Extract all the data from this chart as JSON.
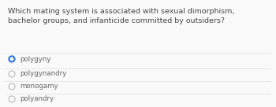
{
  "question_line1": "Which mating system is associated with sexual dimorphism,",
  "question_line2": "bachelor groups, and infanticide committed by outsiders?",
  "options": [
    "polygyny",
    "polygynandry",
    "monogamy",
    "polyandry"
  ],
  "selected_index": 0,
  "bg_color": "#f9f9f9",
  "question_color": "#444444",
  "option_color": "#666666",
  "selected_dot_color": "#3a7fd5",
  "unselected_dot_color": "#bbbbbb",
  "divider_color": "#e0e0e0",
  "question_fontsize": 6.8,
  "option_fontsize": 6.2
}
